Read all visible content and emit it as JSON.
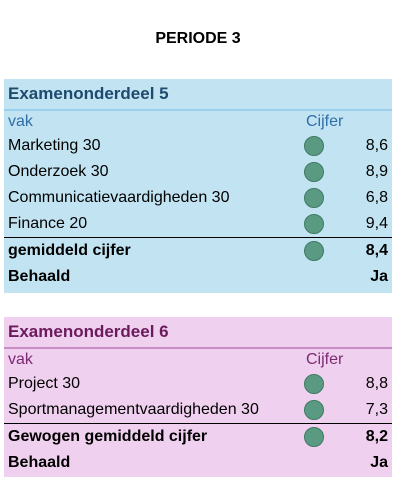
{
  "page_title": "PERIODE 3",
  "sections": [
    {
      "title": "Examenonderdeel 5",
      "col_vak": "vak",
      "col_cijfer": "Cijfer",
      "rows": [
        {
          "label": "Marketing 30",
          "score": "8,6"
        },
        {
          "label": "Onderzoek 30",
          "score": "8,9"
        },
        {
          "label": "Communicatievaardigheden 30",
          "score": "6,8"
        },
        {
          "label": "Finance 20",
          "score": "9,4"
        }
      ],
      "total_label": "gemiddeld cijfer",
      "total_score": "8,4",
      "result_label": "Behaald",
      "result_value": "Ja"
    },
    {
      "title": "Examenonderdeel 6",
      "col_vak": "vak",
      "col_cijfer": "Cijfer",
      "rows": [
        {
          "label": "Project 30",
          "score": "8,8"
        },
        {
          "label": "Sportmanagementvaardigheden 30",
          "score": "7,3"
        }
      ],
      "total_label": "Gewogen gemiddeld cijfer",
      "total_score": "8,2",
      "result_label": "Behaald",
      "result_value": "Ja"
    }
  ],
  "colors": {
    "section5_bg": "#c2e4f2",
    "section6_bg": "#f0d0ef",
    "status_dot": "#5a9a82"
  },
  "icons": {
    "status": "status-dot-icon"
  }
}
